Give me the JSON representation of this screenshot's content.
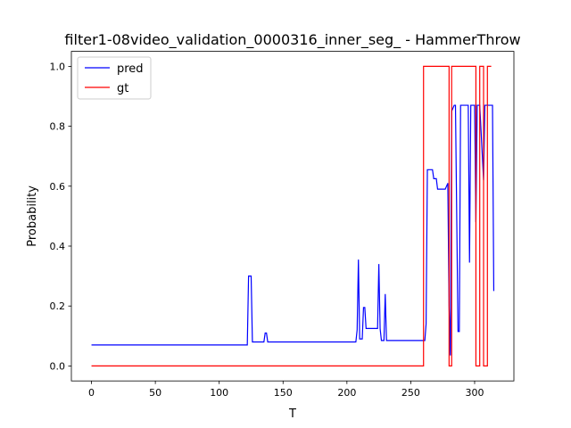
{
  "chart_data": {
    "type": "line",
    "title": "filter1-08video_validation_0000316_inner_seg_ - HammerThrow",
    "xlabel": "T",
    "ylabel": "Probability",
    "xlim": [
      -15.75,
      330.75
    ],
    "ylim": [
      -0.05,
      1.05
    ],
    "xticks": [
      0,
      50,
      100,
      150,
      200,
      250,
      300
    ],
    "yticks": [
      0.0,
      0.2,
      0.4,
      0.6,
      0.8,
      1.0
    ],
    "xtick_labels": [
      "0",
      "50",
      "100",
      "150",
      "200",
      "250",
      "300"
    ],
    "ytick_labels": [
      "0.0",
      "0.2",
      "0.4",
      "0.6",
      "0.8",
      "1.0"
    ],
    "grid": false,
    "legend": {
      "position": "top-left",
      "entries": [
        "pred",
        "gt"
      ]
    },
    "series": [
      {
        "name": "pred",
        "color": "#0000ff",
        "x": [
          0,
          122,
          123,
          125,
          126,
          135,
          136,
          137,
          138,
          207,
          208,
          209,
          210,
          212,
          213,
          214,
          215,
          224,
          225,
          226,
          227,
          229,
          230,
          231,
          232,
          260,
          261,
          262,
          263,
          267,
          268,
          270,
          271,
          273,
          274,
          277,
          278,
          279,
          280,
          281,
          282,
          284,
          285,
          287,
          288,
          289,
          290,
          291,
          295,
          296,
          297,
          299,
          300,
          301,
          302,
          303,
          304,
          307,
          308,
          309,
          310,
          311,
          314,
          315
        ],
        "y": [
          0.07,
          0.07,
          0.3,
          0.3,
          0.08,
          0.08,
          0.11,
          0.11,
          0.08,
          0.08,
          0.12,
          0.355,
          0.09,
          0.09,
          0.195,
          0.195,
          0.125,
          0.125,
          0.34,
          0.125,
          0.085,
          0.085,
          0.24,
          0.085,
          0.085,
          0.085,
          0.085,
          0.14,
          0.655,
          0.655,
          0.625,
          0.625,
          0.59,
          0.59,
          0.59,
          0.59,
          0.6,
          0.61,
          0.2,
          0.035,
          0.85,
          0.87,
          0.87,
          0.115,
          0.115,
          0.87,
          0.87,
          0.87,
          0.87,
          0.345,
          0.87,
          0.87,
          0.87,
          0.48,
          0.87,
          0.87,
          0.87,
          0.62,
          0.87,
          0.87,
          0.87,
          0.87,
          0.87,
          0.25
        ]
      },
      {
        "name": "gt",
        "color": "#ff0000",
        "x": [
          0,
          259,
          260,
          260,
          280,
          280,
          281,
          282,
          282,
          301,
          301,
          304,
          304,
          307,
          307,
          310,
          310,
          313
        ],
        "y": [
          0,
          0,
          0,
          1,
          1,
          0,
          0,
          0,
          1,
          1,
          0,
          0,
          1,
          1,
          0,
          0,
          1,
          1
        ]
      }
    ]
  }
}
